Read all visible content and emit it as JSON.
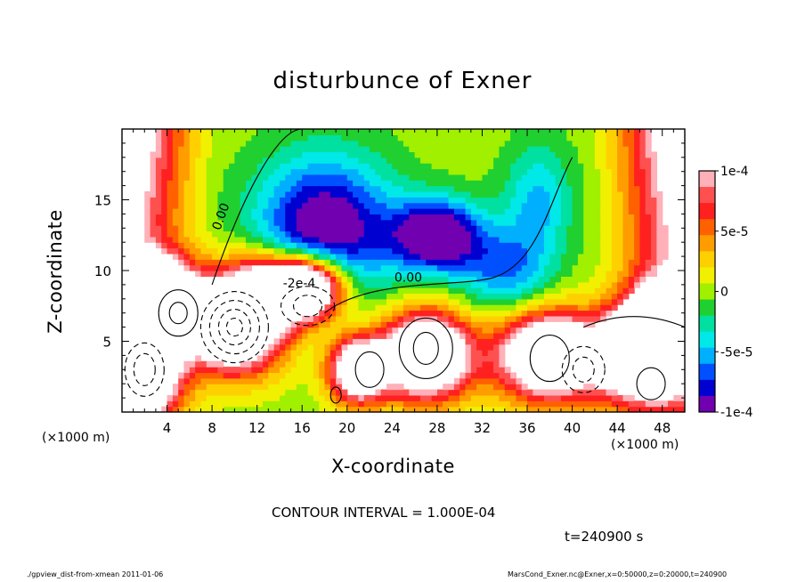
{
  "chart_data": {
    "type": "heatmap",
    "title": "disturbunce of Exner",
    "xlabel": "X-coordinate",
    "ylabel": "Z-coordinate",
    "x_units": "(×1000 m)",
    "xlim": [
      0,
      50
    ],
    "ylim": [
      0,
      20
    ],
    "x_ticks": [
      4,
      8,
      12,
      16,
      20,
      24,
      28,
      32,
      36,
      40,
      44,
      48
    ],
    "y_ticks": [
      5,
      10,
      15
    ],
    "colorbar": {
      "range": [
        -0.0001,
        0.0001
      ],
      "tick_labels": [
        "1e-4",
        "5e-5",
        "0",
        "-5e-5",
        "-1e-4"
      ],
      "tick_values": [
        0.0001,
        5e-05,
        0,
        -5e-05,
        -0.0001
      ],
      "colors": [
        "#ffb0b8",
        "#ff5050",
        "#ff2020",
        "#ff6000",
        "#ff9c00",
        "#ffd000",
        "#f0f000",
        "#a0f000",
        "#20d030",
        "#00e0a0",
        "#00e8e8",
        "#00b0ff",
        "#0050ff",
        "#0000d0",
        "#7000b0"
      ]
    },
    "contour_labels": [
      "0.00",
      "0.00",
      "-2e-4"
    ],
    "contour_interval": "CONTOUR INTERVAL = 1.000E-04",
    "time_label": "t=240900 s"
  },
  "footer": {
    "left": "./gpview_dist-from-xmean  2011-01-06",
    "right": "MarsCond_Exner.nc@Exner,x=0:50000,z=0:20000,t=240900"
  }
}
